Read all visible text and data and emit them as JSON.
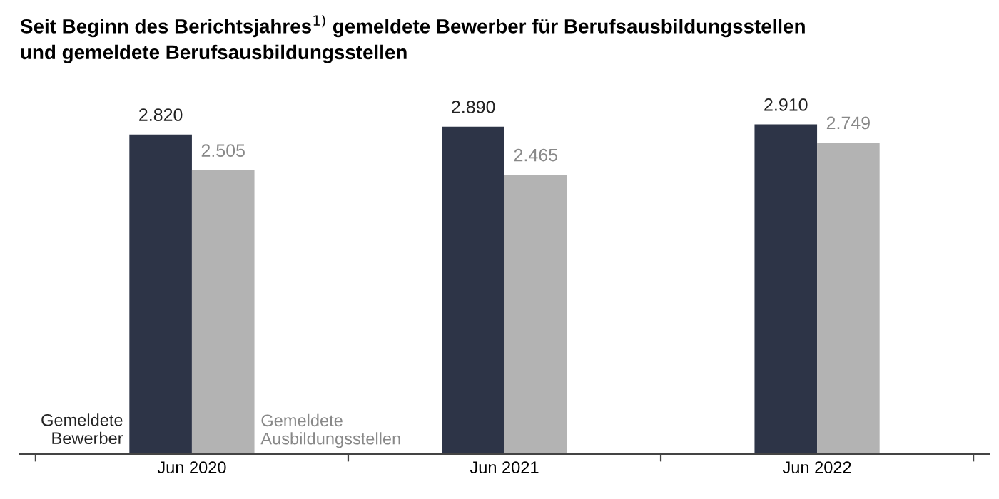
{
  "chart_data": {
    "type": "bar",
    "title": "Seit Beginn des Berichtsjahres$^{1)}$ gemeldete Bewerber für Berufsausbildungsstellen\nund gemeldete Berufsausbildungsstellen",
    "categories": [
      "Jun 2020",
      "Jun 2021",
      "Jun 2022"
    ],
    "series": [
      {
        "name": "Gemeldete\nBewerber",
        "color": "#2d3447",
        "values": [
          2820,
          2890,
          2910
        ],
        "value_labels": [
          "2.820",
          "2.890",
          "2.910"
        ]
      },
      {
        "name": "Gemeldete\nAusbildungsstellen",
        "color": "#b3b3b3",
        "values": [
          2505,
          2465,
          2749
        ],
        "value_labels": [
          "2.505",
          "2.465",
          "2.749"
        ]
      }
    ],
    "grid": false,
    "legend": false
  }
}
